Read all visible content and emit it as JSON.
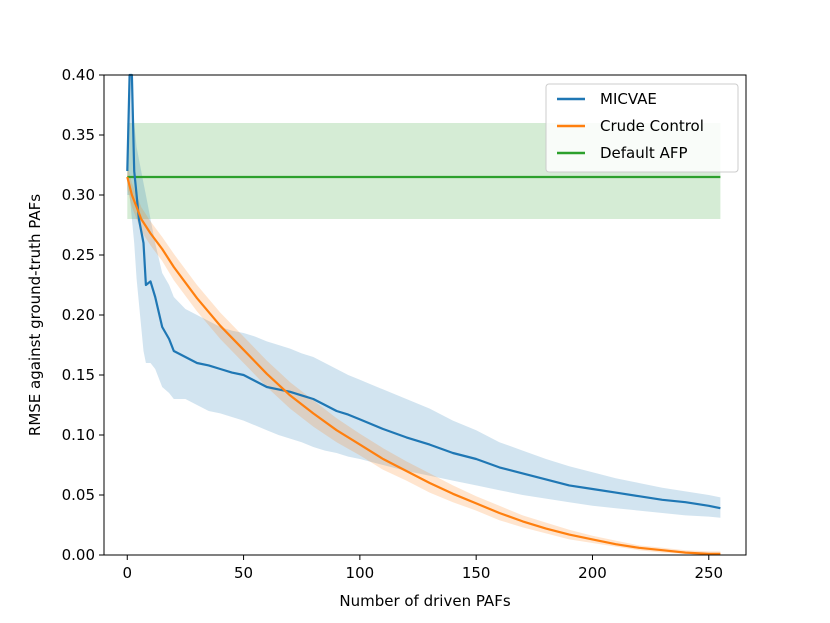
{
  "chart_data": {
    "type": "line",
    "title": "",
    "xlabel": "Number of driven PAFs",
    "ylabel": "RMSE against ground-truth PAFs",
    "xlim": [
      -10,
      266
    ],
    "ylim": [
      0,
      0.4
    ],
    "xticks": [
      0,
      50,
      100,
      150,
      200,
      250
    ],
    "yticks": [
      0.0,
      0.05,
      0.1,
      0.15,
      0.2,
      0.25,
      0.3,
      0.35,
      0.4
    ],
    "xtick_labels": [
      "0",
      "50",
      "100",
      "150",
      "200",
      "250"
    ],
    "ytick_labels": [
      "0.00",
      "0.05",
      "0.10",
      "0.15",
      "0.20",
      "0.25",
      "0.30",
      "0.35",
      "0.40"
    ],
    "legend_position": "top-right",
    "series": [
      {
        "name": "MICVAE",
        "color": "#1f77b4",
        "band_color": "#1f77b4",
        "x": [
          0,
          1,
          2,
          3,
          4,
          5,
          6,
          7,
          8,
          10,
          12,
          15,
          18,
          20,
          25,
          30,
          35,
          40,
          45,
          50,
          55,
          60,
          65,
          70,
          75,
          80,
          85,
          90,
          95,
          100,
          110,
          120,
          130,
          140,
          150,
          160,
          170,
          180,
          190,
          200,
          210,
          220,
          230,
          240,
          250,
          255
        ],
        "values": [
          0.32,
          0.4,
          0.4,
          0.32,
          0.3,
          0.28,
          0.27,
          0.26,
          0.225,
          0.228,
          0.215,
          0.19,
          0.18,
          0.17,
          0.165,
          0.16,
          0.158,
          0.155,
          0.152,
          0.15,
          0.145,
          0.14,
          0.138,
          0.136,
          0.133,
          0.13,
          0.125,
          0.12,
          0.117,
          0.113,
          0.105,
          0.098,
          0.092,
          0.085,
          0.08,
          0.073,
          0.068,
          0.063,
          0.058,
          0.055,
          0.052,
          0.049,
          0.046,
          0.044,
          0.041,
          0.039
        ],
        "lower": [
          0.3,
          0.3,
          0.28,
          0.26,
          0.23,
          0.21,
          0.19,
          0.17,
          0.16,
          0.16,
          0.155,
          0.14,
          0.135,
          0.13,
          0.13,
          0.125,
          0.12,
          0.118,
          0.115,
          0.112,
          0.108,
          0.104,
          0.1,
          0.097,
          0.094,
          0.09,
          0.087,
          0.085,
          0.082,
          0.08,
          0.075,
          0.07,
          0.066,
          0.062,
          0.058,
          0.054,
          0.05,
          0.047,
          0.044,
          0.041,
          0.039,
          0.037,
          0.035,
          0.033,
          0.032,
          0.031
        ],
        "upper": [
          0.33,
          0.4,
          0.4,
          0.36,
          0.34,
          0.33,
          0.32,
          0.31,
          0.3,
          0.28,
          0.26,
          0.235,
          0.225,
          0.215,
          0.205,
          0.2,
          0.195,
          0.19,
          0.187,
          0.185,
          0.182,
          0.178,
          0.175,
          0.172,
          0.168,
          0.165,
          0.16,
          0.155,
          0.15,
          0.146,
          0.138,
          0.13,
          0.122,
          0.112,
          0.104,
          0.094,
          0.087,
          0.08,
          0.074,
          0.069,
          0.064,
          0.06,
          0.056,
          0.053,
          0.05,
          0.048
        ]
      },
      {
        "name": "Crude Control",
        "color": "#ff7f0e",
        "band_color": "#ff7f0e",
        "x": [
          0,
          2,
          4,
          6,
          10,
          15,
          20,
          30,
          40,
          50,
          60,
          70,
          80,
          90,
          100,
          110,
          120,
          130,
          140,
          150,
          160,
          170,
          180,
          190,
          200,
          210,
          220,
          230,
          240,
          250,
          255
        ],
        "values": [
          0.315,
          0.3,
          0.29,
          0.28,
          0.268,
          0.255,
          0.24,
          0.214,
          0.191,
          0.171,
          0.151,
          0.133,
          0.118,
          0.104,
          0.092,
          0.08,
          0.07,
          0.06,
          0.051,
          0.043,
          0.035,
          0.028,
          0.022,
          0.017,
          0.013,
          0.009,
          0.006,
          0.004,
          0.002,
          0.001,
          0.001
        ],
        "lower": [
          0.305,
          0.29,
          0.28,
          0.27,
          0.258,
          0.245,
          0.229,
          0.203,
          0.18,
          0.16,
          0.14,
          0.122,
          0.107,
          0.094,
          0.083,
          0.071,
          0.062,
          0.052,
          0.044,
          0.037,
          0.029,
          0.023,
          0.018,
          0.013,
          0.01,
          0.007,
          0.004,
          0.002,
          0.001,
          0.0,
          0.0
        ],
        "upper": [
          0.325,
          0.31,
          0.3,
          0.29,
          0.278,
          0.265,
          0.251,
          0.225,
          0.202,
          0.182,
          0.162,
          0.144,
          0.129,
          0.114,
          0.101,
          0.089,
          0.078,
          0.068,
          0.058,
          0.049,
          0.041,
          0.033,
          0.027,
          0.021,
          0.016,
          0.012,
          0.008,
          0.006,
          0.004,
          0.003,
          0.003
        ]
      },
      {
        "name": "Default AFP",
        "color": "#2ca02c",
        "band_color": "#2ca02c",
        "x": [
          0,
          255
        ],
        "values": [
          0.315,
          0.315
        ],
        "lower": [
          0.28,
          0.28
        ],
        "upper": [
          0.36,
          0.36
        ]
      }
    ]
  }
}
